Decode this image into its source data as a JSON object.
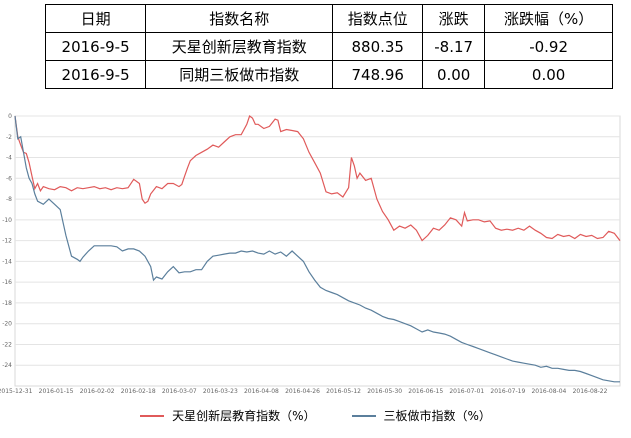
{
  "table": {
    "headers": [
      "日期",
      "指数名称",
      "指数点位",
      "涨跌",
      "涨跌幅（%）"
    ],
    "rows": [
      [
        "2016-9-5",
        "天星创新层教育指数",
        "880.35",
        "-8.17",
        "-0.92"
      ],
      [
        "2016-9-5",
        "同期三板做市指数",
        "748.96",
        "0.00",
        "0.00"
      ]
    ]
  },
  "chart_data": {
    "type": "line",
    "ylim": [
      -26,
      0
    ],
    "yticks": [
      0,
      -2,
      -4,
      -6,
      -8,
      -10,
      -12,
      -14,
      -16,
      -18,
      -20,
      -22,
      -24
    ],
    "x_labels": [
      "2015-12-31",
      "2016-01-15",
      "2016-02-02",
      "2016-02-18",
      "2016-03-07",
      "2016-03-23",
      "2016-04-08",
      "2016-04-26",
      "2016-05-12",
      "2016-05-30",
      "2016-06-15",
      "2016-07-01",
      "2016-07-19",
      "2016-08-04",
      "2016-08-22"
    ],
    "grid": true,
    "legend_position": "bottom",
    "series": [
      {
        "name": "天星创新层教育指数（%）",
        "color": "#e05a5a",
        "values": [
          [
            0,
            0
          ],
          [
            1,
            -2
          ],
          [
            2,
            -2.8
          ],
          [
            3,
            -3.5
          ],
          [
            4,
            -3.6
          ],
          [
            5,
            -4.5
          ],
          [
            6,
            -5.8
          ],
          [
            7,
            -7
          ],
          [
            8,
            -6.5
          ],
          [
            9,
            -7.2
          ],
          [
            10,
            -6.8
          ],
          [
            12,
            -7
          ],
          [
            14,
            -7.1
          ],
          [
            16,
            -6.8
          ],
          [
            18,
            -6.9
          ],
          [
            20,
            -7.2
          ],
          [
            22,
            -6.9
          ],
          [
            24,
            -7
          ],
          [
            26,
            -6.9
          ],
          [
            28,
            -6.8
          ],
          [
            30,
            -7
          ],
          [
            32,
            -6.9
          ],
          [
            34,
            -7.1
          ],
          [
            36,
            -6.9
          ],
          [
            38,
            -7
          ],
          [
            40,
            -6.9
          ],
          [
            42,
            -6.1
          ],
          [
            44,
            -6.5
          ],
          [
            45,
            -8
          ],
          [
            46,
            -8.4
          ],
          [
            47,
            -8.2
          ],
          [
            48,
            -7.5
          ],
          [
            50,
            -6.8
          ],
          [
            52,
            -7
          ],
          [
            54,
            -6.5
          ],
          [
            56,
            -6.5
          ],
          [
            58,
            -6.8
          ],
          [
            59,
            -6.6
          ],
          [
            60,
            -5.8
          ],
          [
            61,
            -5
          ],
          [
            62,
            -4.3
          ],
          [
            64,
            -3.8
          ],
          [
            66,
            -3.5
          ],
          [
            68,
            -3.2
          ],
          [
            70,
            -2.8
          ],
          [
            72,
            -3
          ],
          [
            74,
            -2.5
          ],
          [
            76,
            -2
          ],
          [
            78,
            -1.8
          ],
          [
            80,
            -1.8
          ],
          [
            82,
            -0.8
          ],
          [
            83,
            0
          ],
          [
            84,
            -0.2
          ],
          [
            85,
            -0.8
          ],
          [
            86,
            -0.8
          ],
          [
            88,
            -1.2
          ],
          [
            90,
            -1
          ],
          [
            92,
            -0.3
          ],
          [
            93,
            -0.4
          ],
          [
            94,
            -1.5
          ],
          [
            96,
            -1.3
          ],
          [
            98,
            -1.4
          ],
          [
            100,
            -1.5
          ],
          [
            102,
            -2.2
          ],
          [
            104,
            -3.5
          ],
          [
            106,
            -4.5
          ],
          [
            108,
            -5.5
          ],
          [
            110,
            -7.3
          ],
          [
            112,
            -7.5
          ],
          [
            114,
            -7.4
          ],
          [
            116,
            -7.8
          ],
          [
            118,
            -6.9
          ],
          [
            119,
            -4
          ],
          [
            120,
            -4.8
          ],
          [
            121,
            -6
          ],
          [
            122,
            -5.5
          ],
          [
            124,
            -6.2
          ],
          [
            126,
            -6
          ],
          [
            128,
            -8
          ],
          [
            130,
            -9.2
          ],
          [
            132,
            -10
          ],
          [
            134,
            -11
          ],
          [
            136,
            -10.6
          ],
          [
            138,
            -10.8
          ],
          [
            140,
            -10.5
          ],
          [
            142,
            -11
          ],
          [
            144,
            -12
          ],
          [
            146,
            -11.5
          ],
          [
            148,
            -10.8
          ],
          [
            150,
            -11
          ],
          [
            152,
            -10.5
          ],
          [
            154,
            -9.8
          ],
          [
            156,
            -10
          ],
          [
            158,
            -10.6
          ],
          [
            159,
            -9.3
          ],
          [
            160,
            -10.1
          ],
          [
            162,
            -10
          ],
          [
            164,
            -10
          ],
          [
            166,
            -10.2
          ],
          [
            168,
            -10.1
          ],
          [
            170,
            -10.8
          ],
          [
            172,
            -11
          ],
          [
            174,
            -10.9
          ],
          [
            176,
            -11
          ],
          [
            178,
            -10.8
          ],
          [
            180,
            -11
          ],
          [
            182,
            -10.6
          ],
          [
            184,
            -11
          ],
          [
            186,
            -11.3
          ],
          [
            188,
            -11.7
          ],
          [
            190,
            -11.8
          ],
          [
            192,
            -11.4
          ],
          [
            194,
            -11.6
          ],
          [
            196,
            -11.5
          ],
          [
            198,
            -11.8
          ],
          [
            200,
            -11.4
          ],
          [
            202,
            -11.6
          ],
          [
            204,
            -11.5
          ],
          [
            206,
            -11.8
          ],
          [
            208,
            -11.7
          ],
          [
            210,
            -11.1
          ],
          [
            212,
            -11.3
          ],
          [
            214,
            -12
          ]
        ]
      },
      {
        "name": "三板做市指数（%）",
        "color": "#5b7f9c",
        "values": [
          [
            0,
            0
          ],
          [
            1,
            -2.2
          ],
          [
            2,
            -2
          ],
          [
            3,
            -3.5
          ],
          [
            4,
            -5
          ],
          [
            5,
            -6
          ],
          [
            6,
            -6.5
          ],
          [
            7,
            -7.5
          ],
          [
            8,
            -8.2
          ],
          [
            10,
            -8.5
          ],
          [
            12,
            -8
          ],
          [
            14,
            -8.5
          ],
          [
            16,
            -9
          ],
          [
            18,
            -11.5
          ],
          [
            20,
            -13.5
          ],
          [
            22,
            -13.8
          ],
          [
            23,
            -14
          ],
          [
            24,
            -13.6
          ],
          [
            26,
            -13
          ],
          [
            28,
            -12.5
          ],
          [
            30,
            -12.5
          ],
          [
            32,
            -12.5
          ],
          [
            34,
            -12.5
          ],
          [
            36,
            -12.6
          ],
          [
            38,
            -13
          ],
          [
            40,
            -12.8
          ],
          [
            42,
            -12.8
          ],
          [
            44,
            -13
          ],
          [
            46,
            -13.5
          ],
          [
            48,
            -14.5
          ],
          [
            49,
            -15.8
          ],
          [
            50,
            -15.5
          ],
          [
            52,
            -15.7
          ],
          [
            54,
            -15
          ],
          [
            56,
            -14.5
          ],
          [
            58,
            -15.1
          ],
          [
            60,
            -15
          ],
          [
            62,
            -15
          ],
          [
            64,
            -14.8
          ],
          [
            66,
            -14.8
          ],
          [
            68,
            -14
          ],
          [
            70,
            -13.5
          ],
          [
            72,
            -13.4
          ],
          [
            74,
            -13.3
          ],
          [
            76,
            -13.2
          ],
          [
            78,
            -13.2
          ],
          [
            80,
            -13
          ],
          [
            82,
            -13.1
          ],
          [
            84,
            -13
          ],
          [
            86,
            -13.2
          ],
          [
            88,
            -13.3
          ],
          [
            90,
            -13
          ],
          [
            92,
            -13.3
          ],
          [
            94,
            -13.1
          ],
          [
            96,
            -13.5
          ],
          [
            98,
            -13
          ],
          [
            100,
            -13.5
          ],
          [
            102,
            -14
          ],
          [
            104,
            -15
          ],
          [
            106,
            -15.8
          ],
          [
            108,
            -16.5
          ],
          [
            110,
            -16.8
          ],
          [
            112,
            -17
          ],
          [
            114,
            -17.2
          ],
          [
            116,
            -17.5
          ],
          [
            118,
            -17.8
          ],
          [
            120,
            -18
          ],
          [
            122,
            -18.2
          ],
          [
            124,
            -18.5
          ],
          [
            126,
            -18.7
          ],
          [
            128,
            -19
          ],
          [
            130,
            -19.3
          ],
          [
            132,
            -19.5
          ],
          [
            134,
            -19.6
          ],
          [
            136,
            -19.8
          ],
          [
            138,
            -20
          ],
          [
            140,
            -20.2
          ],
          [
            142,
            -20.5
          ],
          [
            144,
            -20.8
          ],
          [
            146,
            -20.6
          ],
          [
            148,
            -20.8
          ],
          [
            150,
            -20.9
          ],
          [
            152,
            -21
          ],
          [
            154,
            -21.2
          ],
          [
            156,
            -21.5
          ],
          [
            158,
            -21.8
          ],
          [
            160,
            -22
          ],
          [
            162,
            -22.2
          ],
          [
            164,
            -22.4
          ],
          [
            166,
            -22.6
          ],
          [
            168,
            -22.8
          ],
          [
            170,
            -23
          ],
          [
            172,
            -23.2
          ],
          [
            174,
            -23.4
          ],
          [
            176,
            -23.6
          ],
          [
            178,
            -23.7
          ],
          [
            180,
            -23.8
          ],
          [
            182,
            -23.9
          ],
          [
            184,
            -24
          ],
          [
            186,
            -24.2
          ],
          [
            188,
            -24.1
          ],
          [
            190,
            -24.3
          ],
          [
            192,
            -24.3
          ],
          [
            194,
            -24.4
          ],
          [
            196,
            -24.5
          ],
          [
            198,
            -24.5
          ],
          [
            200,
            -24.6
          ],
          [
            202,
            -24.8
          ],
          [
            204,
            -25
          ],
          [
            206,
            -25.2
          ],
          [
            208,
            -25.4
          ],
          [
            210,
            -25.5
          ],
          [
            212,
            -25.6
          ],
          [
            214,
            -25.6
          ]
        ]
      }
    ]
  }
}
